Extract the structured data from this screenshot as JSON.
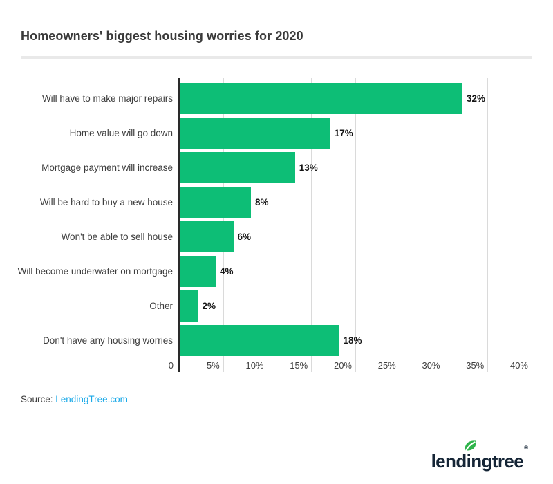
{
  "title": "Homeowners' biggest housing worries for 2020",
  "chart_data": {
    "type": "bar",
    "orientation": "horizontal",
    "title": "Homeowners' biggest housing worries for 2020",
    "categories": [
      "Will have to make major repairs",
      "Home value will go down",
      "Mortgage payment will increase",
      "Will be hard to buy a new house",
      "Won't be able to sell house",
      "Will become underwater on mortgage",
      "Other",
      "Don't have any housing worries"
    ],
    "values": [
      32,
      17,
      13,
      8,
      6,
      4,
      2,
      18
    ],
    "value_labels": [
      "32%",
      "17%",
      "13%",
      "8%",
      "6%",
      "4%",
      "2%",
      "18%"
    ],
    "x_ticks": [
      "0",
      "5%",
      "10%",
      "15%",
      "20%",
      "25%",
      "30%",
      "35%",
      "40%"
    ],
    "xlim": [
      0,
      40
    ],
    "xlabel": "",
    "ylabel": "",
    "grid": true,
    "legend": false,
    "bar_color": "#0dbe76",
    "axis_color": "#2a2a2a",
    "gridline_color": "#dadada"
  },
  "source": {
    "prefix": "Source: ",
    "link_text": "LendingTree.com",
    "link_color": "#1aa9e8"
  },
  "footer": {
    "logo_text": "lendingtree",
    "registered_mark": "®",
    "logo_color": "#152536",
    "leaf_color": "#2fb44b"
  }
}
